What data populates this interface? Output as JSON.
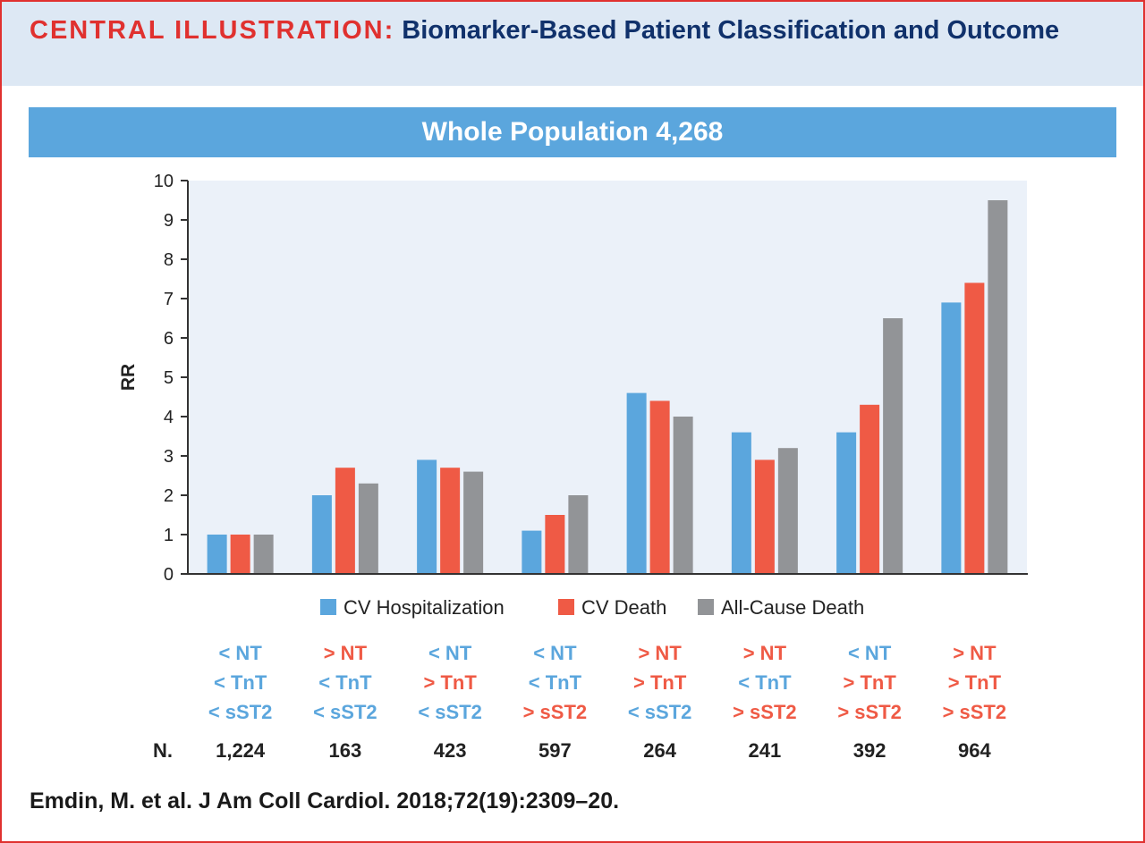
{
  "header": {
    "label": "CENTRAL ILLUSTRATION:",
    "title": "Biomarker-Based Patient Classification and Outcome"
  },
  "banner": {
    "title": "Whole Population 4,268"
  },
  "colors": {
    "cv_hospitalization": "#5ba6dd",
    "cv_death": "#ef5a45",
    "all_cause_death": "#929497",
    "below_threshold_text": "#5ba6dd",
    "above_threshold_text": "#ef5a45",
    "plot_background": "#ebf1f9",
    "header_background": "#dde8f4",
    "header_label": "#e0312f",
    "header_title": "#10316b",
    "frame": "#e0312f"
  },
  "chart_data": {
    "type": "bar",
    "ylabel": "RR",
    "xlabel": "",
    "ylim": [
      0,
      10
    ],
    "yticks": [
      "0",
      "1",
      "2",
      "3",
      "4",
      "5",
      "6",
      "7",
      "8",
      "9",
      "10"
    ],
    "categories": [
      "< NT / < TnT / < sST2",
      "> NT / < TnT / < sST2",
      "< NT / > TnT / < sST2",
      "< NT / < TnT / > sST2",
      "> NT / > TnT / < sST2",
      "> NT / < TnT / > sST2",
      "< NT / > TnT / > sST2",
      "> NT / > TnT / > sST2"
    ],
    "series": [
      {
        "name": "CV Hospitalization",
        "color": "#5ba6dd",
        "values": [
          1.0,
          2.0,
          2.9,
          1.1,
          4.6,
          3.6,
          3.6,
          6.9
        ]
      },
      {
        "name": "CV Death",
        "color": "#ef5a45",
        "values": [
          1.0,
          2.7,
          2.7,
          1.5,
          4.4,
          2.9,
          4.3,
          7.4
        ]
      },
      {
        "name": "All-Cause Death",
        "color": "#929497",
        "values": [
          1.0,
          2.3,
          2.6,
          2.0,
          4.0,
          3.2,
          6.5,
          9.5
        ]
      }
    ],
    "legend": "bottom",
    "grid": false
  },
  "groups": [
    {
      "nt": "< NT",
      "tnt": "< TnT",
      "sst2": "< sST2",
      "nt_high": false,
      "tnt_high": false,
      "sst2_high": false,
      "n": "1,224"
    },
    {
      "nt": "> NT",
      "tnt": "< TnT",
      "sst2": "< sST2",
      "nt_high": true,
      "tnt_high": false,
      "sst2_high": false,
      "n": "163"
    },
    {
      "nt": "< NT",
      "tnt": "> TnT",
      "sst2": "< sST2",
      "nt_high": false,
      "tnt_high": true,
      "sst2_high": false,
      "n": "423"
    },
    {
      "nt": "< NT",
      "tnt": "< TnT",
      "sst2": "> sST2",
      "nt_high": false,
      "tnt_high": false,
      "sst2_high": true,
      "n": "597"
    },
    {
      "nt": "> NT",
      "tnt": "> TnT",
      "sst2": "< sST2",
      "nt_high": true,
      "tnt_high": true,
      "sst2_high": false,
      "n": "264"
    },
    {
      "nt": "> NT",
      "tnt": "< TnT",
      "sst2": "> sST2",
      "nt_high": true,
      "tnt_high": false,
      "sst2_high": true,
      "n": "241"
    },
    {
      "nt": "< NT",
      "tnt": "> TnT",
      "sst2": "> sST2",
      "nt_high": false,
      "tnt_high": true,
      "sst2_high": true,
      "n": "392"
    },
    {
      "nt": "> NT",
      "tnt": "> TnT",
      "sst2": "> sST2",
      "nt_high": true,
      "tnt_high": true,
      "sst2_high": true,
      "n": "964"
    }
  ],
  "n_label": "N.",
  "citation": "Emdin, M. et al. J Am Coll Cardiol. 2018;72(19):2309–20."
}
